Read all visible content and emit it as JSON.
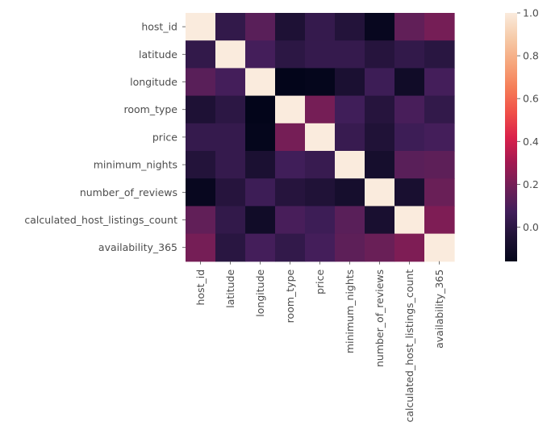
{
  "chart_data": {
    "type": "heatmap",
    "rows": [
      "host_id",
      "latitude",
      "longitude",
      "room_type",
      "price",
      "minimum_nights",
      "number_of_reviews",
      "calculated_host_listings_count",
      "availability_365"
    ],
    "columns": [
      "host_id",
      "latitude",
      "longitude",
      "room_type",
      "price",
      "minimum_nights",
      "number_of_reviews",
      "calculated_host_listings_count",
      "availability_365"
    ],
    "values": [
      [
        1.0,
        0.02,
        0.13,
        -0.05,
        0.03,
        -0.03,
        -0.14,
        0.15,
        0.2
      ],
      [
        0.02,
        1.0,
        0.08,
        0.0,
        0.03,
        0.03,
        -0.02,
        0.02,
        -0.01
      ],
      [
        0.13,
        0.08,
        1.0,
        -0.16,
        -0.15,
        -0.06,
        0.06,
        -0.1,
        0.08
      ],
      [
        -0.05,
        0.0,
        -0.16,
        1.0,
        0.2,
        0.07,
        -0.02,
        0.09,
        0.02
      ],
      [
        0.03,
        0.03,
        -0.15,
        0.2,
        1.0,
        0.04,
        -0.04,
        0.06,
        0.08
      ],
      [
        -0.03,
        0.03,
        -0.06,
        0.07,
        0.04,
        1.0,
        -0.08,
        0.13,
        0.14
      ],
      [
        -0.14,
        -0.02,
        0.06,
        -0.02,
        -0.04,
        -0.08,
        1.0,
        -0.07,
        0.17
      ],
      [
        0.15,
        0.02,
        -0.1,
        0.09,
        0.06,
        0.13,
        -0.07,
        1.0,
        0.22
      ],
      [
        0.2,
        -0.01,
        0.08,
        0.02,
        0.08,
        0.14,
        0.17,
        0.22,
        1.0
      ]
    ],
    "vmin": -0.16,
    "vmax": 1.0,
    "colorbar_ticks": [
      "1.0",
      "0.8",
      "0.6",
      "0.4",
      "0.2",
      "0.0"
    ],
    "colorbar_tick_values": [
      1.0,
      0.8,
      0.6,
      0.4,
      0.2,
      0.0
    ],
    "colormap": "rocket",
    "colorbar_position": "right"
  }
}
